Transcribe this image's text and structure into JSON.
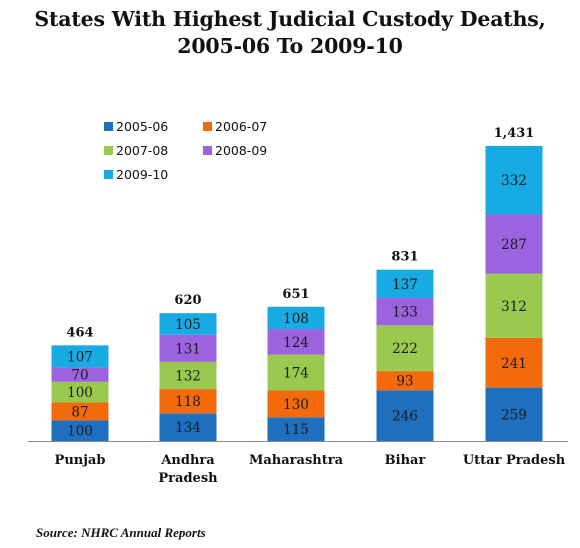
{
  "title_line1": "States With Highest Judicial Custody Deaths,",
  "title_line2": "2005-06 To 2009-10",
  "source": "Source: NHRC Annual Reports",
  "chart_data": {
    "type": "bar",
    "stacked": true,
    "categories": [
      "Punjab",
      "Andhra Pradesh",
      "Maharashtra",
      "Bihar",
      "Uttar Pradesh"
    ],
    "category_label_lines": [
      [
        "Punjab"
      ],
      [
        "Andhra",
        "Pradesh"
      ],
      [
        "Maharashtra"
      ],
      [
        "Bihar"
      ],
      [
        "Uttar Pradesh"
      ]
    ],
    "series": [
      {
        "name": "2005-06",
        "color": "#1f6fbf",
        "values": [
          100,
          134,
          115,
          246,
          259
        ]
      },
      {
        "name": "2006-07",
        "color": "#f26a0c",
        "values": [
          87,
          118,
          130,
          93,
          241
        ]
      },
      {
        "name": "2007-08",
        "color": "#9ac94f",
        "values": [
          100,
          132,
          174,
          222,
          312
        ]
      },
      {
        "name": "2008-09",
        "color": "#9b63dd",
        "values": [
          70,
          131,
          124,
          133,
          287
        ]
      },
      {
        "name": "2009-10",
        "color": "#18aae3",
        "values": [
          107,
          105,
          108,
          137,
          332
        ]
      }
    ],
    "totals": [
      "464",
      "620",
      "651",
      "831",
      "1,431"
    ],
    "legend_position": "top-left",
    "grid": false,
    "ylim": [
      0,
      1431
    ]
  }
}
